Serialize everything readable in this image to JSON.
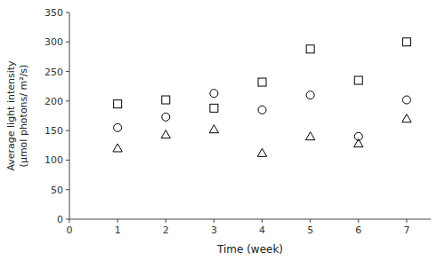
{
  "chart_data": {
    "type": "scatter",
    "xlabel": "Time (week)",
    "ylabel": "Average light intensity\n(μmol photons/ m²/s)",
    "x": [
      1,
      2,
      3,
      4,
      5,
      6,
      7
    ],
    "series": [
      {
        "marker": "square",
        "color": "#000000",
        "values": [
          195,
          202,
          188,
          232,
          288,
          235,
          300
        ]
      },
      {
        "marker": "circle",
        "color": "#000000",
        "values": [
          155,
          173,
          213,
          185,
          210,
          140,
          202
        ]
      },
      {
        "marker": "triangle",
        "color": "#000000",
        "values": [
          120,
          143,
          152,
          112,
          140,
          128,
          170
        ]
      }
    ],
    "xlim": [
      0,
      7.5
    ],
    "ylim": [
      0,
      350
    ],
    "xticks": [
      0,
      1,
      2,
      3,
      4,
      5,
      6,
      7
    ],
    "yticks": [
      0,
      50,
      100,
      150,
      200,
      250,
      300,
      350
    ],
    "grid": false
  }
}
